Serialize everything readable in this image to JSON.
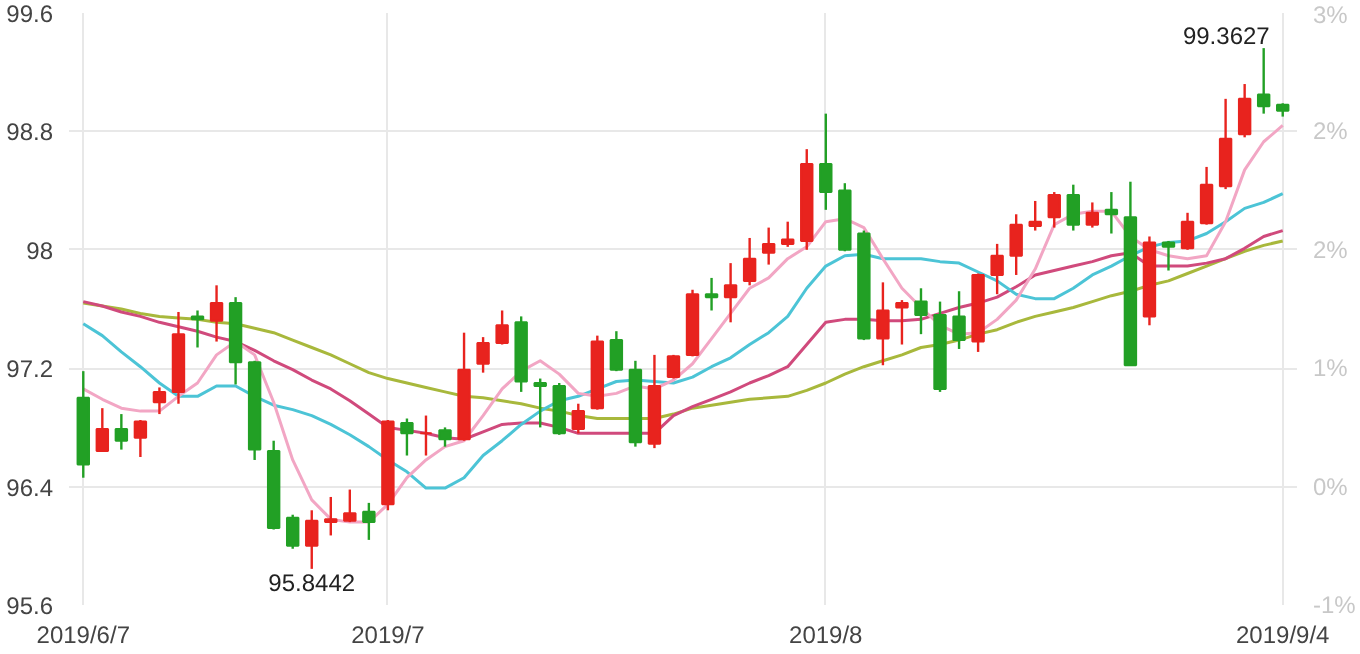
{
  "chart_data": {
    "type": "candlestick",
    "categories": [
      "2019/6/7",
      null,
      null,
      null,
      null,
      null,
      null,
      null,
      null,
      null,
      null,
      null,
      null,
      null,
      null,
      null,
      "2019/7",
      null,
      null,
      null,
      null,
      null,
      null,
      null,
      null,
      null,
      null,
      null,
      null,
      null,
      null,
      null,
      null,
      null,
      null,
      null,
      null,
      null,
      null,
      "2019/8",
      null,
      null,
      null,
      null,
      null,
      null,
      null,
      null,
      null,
      null,
      null,
      null,
      null,
      null,
      null,
      null,
      null,
      null,
      null,
      null,
      null,
      null,
      null,
      "2019/9/4"
    ],
    "ohlc": [
      [
        97.0,
        97.18,
        96.46,
        96.55
      ],
      [
        96.64,
        96.93,
        96.64,
        96.79
      ],
      [
        96.79,
        96.89,
        96.65,
        96.71
      ],
      [
        96.73,
        96.85,
        96.6,
        96.84
      ],
      [
        96.97,
        97.07,
        96.89,
        97.04
      ],
      [
        97.04,
        97.58,
        96.96,
        97.43
      ],
      [
        97.55,
        97.59,
        97.34,
        97.53
      ],
      [
        97.52,
        97.76,
        97.38,
        97.64
      ],
      [
        97.64,
        97.68,
        97.09,
        97.24
      ],
      [
        97.24,
        97.25,
        96.58,
        96.65
      ],
      [
        96.64,
        96.71,
        96.11,
        96.12
      ],
      [
        96.19,
        96.21,
        95.98,
        96.0
      ],
      [
        96.0,
        96.24,
        95.8442,
        96.17
      ],
      [
        96.16,
        96.33,
        96.07,
        96.18
      ],
      [
        96.17,
        96.38,
        96.16,
        96.22
      ],
      [
        96.23,
        96.29,
        96.04,
        96.16
      ],
      [
        96.28,
        96.85,
        96.24,
        96.84
      ],
      [
        96.83,
        96.86,
        96.61,
        96.76
      ],
      [
        96.76,
        96.88,
        96.61,
        96.76
      ],
      [
        96.78,
        96.8,
        96.67,
        96.72
      ],
      [
        96.72,
        97.44,
        96.71,
        97.19
      ],
      [
        97.23,
        97.41,
        97.17,
        97.37
      ],
      [
        97.37,
        97.59,
        97.36,
        97.49
      ],
      [
        97.51,
        97.55,
        97.04,
        97.11
      ],
      [
        97.1,
        97.13,
        96.8,
        97.08
      ],
      [
        97.08,
        97.1,
        96.75,
        96.76
      ],
      [
        96.79,
        96.96,
        96.76,
        96.91
      ],
      [
        96.93,
        97.42,
        96.92,
        97.38
      ],
      [
        97.39,
        97.45,
        97.18,
        97.19
      ],
      [
        97.19,
        97.25,
        96.67,
        96.7
      ],
      [
        96.69,
        97.29,
        96.66,
        97.08
      ],
      [
        97.14,
        97.29,
        97.13,
        97.28
      ],
      [
        97.29,
        97.73,
        97.28,
        97.7
      ],
      [
        97.7,
        97.81,
        97.59,
        97.68
      ],
      [
        97.68,
        97.91,
        97.51,
        97.76
      ],
      [
        97.79,
        98.08,
        97.76,
        97.94
      ],
      [
        97.98,
        98.15,
        97.9,
        98.04
      ],
      [
        98.04,
        98.19,
        98.02,
        98.07
      ],
      [
        98.06,
        98.68,
        98.0,
        98.58
      ],
      [
        98.58,
        98.92,
        98.27,
        98.39
      ],
      [
        98.4,
        98.45,
        97.99,
        98.0
      ],
      [
        98.11,
        98.13,
        97.39,
        97.4
      ],
      [
        97.4,
        97.78,
        97.22,
        97.59
      ],
      [
        97.61,
        97.66,
        97.36,
        97.64
      ],
      [
        97.65,
        97.74,
        97.43,
        97.56
      ],
      [
        97.56,
        97.65,
        97.04,
        97.06
      ],
      [
        97.55,
        97.72,
        97.33,
        97.39
      ],
      [
        97.38,
        97.84,
        97.31,
        97.83
      ],
      [
        97.83,
        98.04,
        97.7,
        97.96
      ],
      [
        97.96,
        98.24,
        97.83,
        98.17
      ],
      [
        98.16,
        98.33,
        98.13,
        98.19
      ],
      [
        98.22,
        98.39,
        98.15,
        98.37
      ],
      [
        98.37,
        98.44,
        98.13,
        98.17
      ],
      [
        98.17,
        98.32,
        98.15,
        98.25
      ],
      [
        98.27,
        98.39,
        98.11,
        98.24
      ],
      [
        98.22,
        98.46,
        97.22,
        97.22
      ],
      [
        97.55,
        98.09,
        97.49,
        98.05
      ],
      [
        98.05,
        98.06,
        97.86,
        98.02
      ],
      [
        98.01,
        98.25,
        98.0,
        98.19
      ],
      [
        98.18,
        98.56,
        98.17,
        98.44
      ],
      [
        98.43,
        99.02,
        98.41,
        98.75
      ],
      [
        98.78,
        99.12,
        98.76,
        99.02
      ],
      [
        99.05,
        99.3627,
        98.92,
        98.97
      ],
      [
        98.98,
        98.99,
        98.9,
        98.94
      ]
    ],
    "colors": [
      "#22a025",
      "#e8231e",
      "#22a025",
      "#e8231e",
      "#e8231e",
      "#e8231e",
      "#22a025",
      "#e8231e",
      "#22a025",
      "#22a025",
      "#22a025",
      "#22a025",
      "#e8231e",
      "#e8231e",
      "#e8231e",
      "#22a025",
      "#e8231e",
      "#22a025",
      "#e8231e",
      "#22a025",
      "#e8231e",
      "#e8231e",
      "#e8231e",
      "#22a025",
      "#22a025",
      "#22a025",
      "#e8231e",
      "#e8231e",
      "#22a025",
      "#22a025",
      "#e8231e",
      "#e8231e",
      "#e8231e",
      "#22a025",
      "#e8231e",
      "#e8231e",
      "#e8231e",
      "#e8231e",
      "#e8231e",
      "#22a025",
      "#22a025",
      "#22a025",
      "#e8231e",
      "#e8231e",
      "#22a025",
      "#22a025",
      "#22a025",
      "#e8231e",
      "#e8231e",
      "#e8231e",
      "#e8231e",
      "#e8231e",
      "#22a025",
      "#e8231e",
      "#22a025",
      "#22a025",
      "#e8231e",
      "#22a025",
      "#e8231e",
      "#e8231e",
      "#e8231e",
      "#e8231e",
      "#22a025",
      "#22a025"
    ],
    "series": [
      {
        "type": "line",
        "color": "#a8b83c",
        "values": [
          97.64,
          97.62,
          97.6,
          97.57,
          97.55,
          97.54,
          97.53,
          97.51,
          97.5,
          97.47,
          97.44,
          97.39,
          97.34,
          97.29,
          97.23,
          97.17,
          97.13,
          97.1,
          97.07,
          97.04,
          97.01,
          97.0,
          96.98,
          96.96,
          96.93,
          96.91,
          96.88,
          96.86,
          96.86,
          96.86,
          96.86,
          96.89,
          96.93,
          96.95,
          96.97,
          96.99,
          97.0,
          97.01,
          97.05,
          97.1,
          97.16,
          97.21,
          97.25,
          97.29,
          97.34,
          97.36,
          97.39,
          97.43,
          97.46,
          97.51,
          97.55,
          97.58,
          97.61,
          97.65,
          97.69,
          97.72,
          97.76,
          97.79,
          97.84,
          97.89,
          97.94,
          97.99,
          98.03,
          98.06
        ]
      },
      {
        "type": "line",
        "color": "#d04a7c",
        "values": [
          97.65,
          97.62,
          97.58,
          97.55,
          97.51,
          97.48,
          97.45,
          97.41,
          97.38,
          97.32,
          97.25,
          97.19,
          97.12,
          97.06,
          96.98,
          96.89,
          96.8,
          96.78,
          96.76,
          96.73,
          96.72,
          96.77,
          96.82,
          96.83,
          96.83,
          96.8,
          96.76,
          96.76,
          96.76,
          96.76,
          96.76,
          96.88,
          96.94,
          96.99,
          97.04,
          97.1,
          97.15,
          97.21,
          97.36,
          97.51,
          97.53,
          97.53,
          97.52,
          97.52,
          97.53,
          97.57,
          97.61,
          97.64,
          97.68,
          97.75,
          97.83,
          97.86,
          97.89,
          97.92,
          97.96,
          97.98,
          97.89,
          97.89,
          97.89,
          97.91,
          97.94,
          98.01,
          98.09,
          98.13
        ]
      },
      {
        "type": "line",
        "color": "#4cc4d6",
        "values": [
          97.5,
          97.42,
          97.31,
          97.21,
          97.1,
          97.01,
          97.01,
          97.08,
          97.08,
          97.01,
          96.95,
          96.92,
          96.88,
          96.82,
          96.75,
          96.67,
          96.58,
          96.5,
          96.39,
          96.39,
          96.46,
          96.61,
          96.71,
          96.82,
          96.91,
          96.98,
          97.01,
          97.06,
          97.11,
          97.12,
          97.11,
          97.1,
          97.14,
          97.21,
          97.27,
          97.36,
          97.44,
          97.55,
          97.74,
          97.89,
          97.96,
          97.97,
          97.94,
          97.94,
          97.94,
          97.92,
          97.91,
          97.85,
          97.79,
          97.7,
          97.67,
          97.67,
          97.74,
          97.83,
          97.89,
          97.96,
          98.02,
          98.05,
          98.06,
          98.11,
          98.19,
          98.28,
          98.32,
          98.38
        ]
      },
      {
        "type": "line",
        "color": "#f2a6c4",
        "values": [
          97.06,
          96.99,
          96.93,
          96.91,
          96.91,
          97.01,
          97.1,
          97.29,
          97.38,
          97.29,
          96.97,
          96.58,
          96.31,
          96.18,
          96.16,
          96.16,
          96.28,
          96.46,
          96.58,
          96.67,
          96.71,
          96.88,
          97.06,
          97.18,
          97.25,
          97.16,
          97.03,
          97.01,
          97.03,
          97.08,
          97.06,
          97.12,
          97.23,
          97.4,
          97.57,
          97.74,
          97.81,
          97.94,
          98.02,
          98.19,
          98.21,
          98.15,
          97.94,
          97.74,
          97.61,
          97.49,
          97.43,
          97.44,
          97.53,
          97.66,
          97.87,
          98.17,
          98.24,
          98.26,
          98.26,
          98.09,
          98.0,
          97.96,
          97.94,
          97.96,
          98.19,
          98.54,
          98.73,
          98.84
        ]
      }
    ],
    "ylim": [
      95.6,
      99.6
    ],
    "yticks": [
      95.6,
      96.4,
      97.2,
      98,
      98.8,
      99.6
    ],
    "y2lim": [
      -0.83,
      3.32
    ],
    "y2ticks": [
      {
        "value": -0.83,
        "label": "-1%"
      },
      {
        "value": 0,
        "label": "0%"
      },
      {
        "value": 0.83,
        "label": "1%"
      },
      {
        "value": 1.66,
        "label": "2%"
      },
      {
        "value": 2.49,
        "label": "2%"
      },
      {
        "value": 3.32,
        "label": "3%"
      }
    ],
    "grid": true,
    "annotations": [
      {
        "text": "95.8442",
        "y": 95.8442
      },
      "99.3627"
    ]
  }
}
